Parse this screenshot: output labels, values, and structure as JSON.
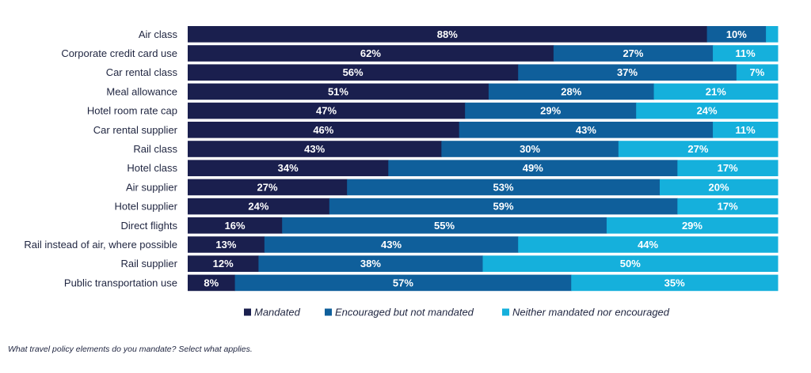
{
  "chart_data": {
    "type": "bar",
    "orientation": "horizontal",
    "stacked": true,
    "value_format": "percent",
    "categories": [
      "Air class",
      "Corporate credit card use",
      "Car rental class",
      "Meal allowance",
      "Hotel room rate cap",
      "Car rental supplier",
      "Rail class",
      "Hotel class",
      "Air supplier",
      "Hotel supplier",
      "Direct flights",
      "Rail instead of air, where possible",
      "Rail supplier",
      "Public transportation use"
    ],
    "series": [
      {
        "name": "Mandated",
        "color": "#1a1f4e",
        "values": [
          88,
          62,
          56,
          51,
          47,
          46,
          43,
          34,
          27,
          24,
          16,
          13,
          12,
          8
        ]
      },
      {
        "name": "Encouraged but not mandated",
        "color": "#0f5f9b",
        "values": [
          10,
          27,
          37,
          28,
          29,
          43,
          30,
          49,
          53,
          59,
          55,
          43,
          38,
          57
        ]
      },
      {
        "name": "Neither mandated nor encouraged",
        "color": "#15b0dc",
        "values": [
          2,
          11,
          7,
          21,
          24,
          11,
          27,
          17,
          20,
          17,
          29,
          44,
          50,
          35
        ]
      }
    ],
    "data_labels_hidden": [
      [
        false,
        false,
        true
      ]
    ],
    "xlim": [
      0,
      100
    ],
    "grid": false,
    "legend_position": "bottom-center"
  },
  "caption": "What travel policy elements do you mandate? Select what applies."
}
